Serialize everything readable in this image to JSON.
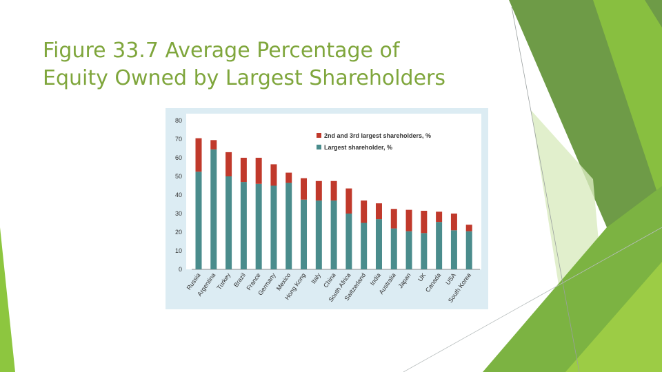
{
  "slide": {
    "title_line1": "Figure 33.7 Average Percentage of",
    "title_line2": "Equity Owned by Largest Shareholders"
  },
  "colors": {
    "title": "#7fa63c",
    "largest": "#4a8c8c",
    "second_third": "#c0392b",
    "panel": "#dcecf3",
    "plot_bg": "#ffffff"
  },
  "chart_data": {
    "type": "bar",
    "stacked": true,
    "title": "",
    "xlabel": "",
    "ylabel": "",
    "ylim": [
      0,
      80
    ],
    "yticks": [
      0,
      10,
      20,
      30,
      40,
      50,
      60,
      70,
      80
    ],
    "legend_position": "top-right",
    "categories": [
      "Russia",
      "Argentina",
      "Turkey",
      "Brazil",
      "France",
      "Germany",
      "Mexico",
      "Hong Kong",
      "Italy",
      "China",
      "South Africa",
      "Switzerland",
      "India",
      "Australia",
      "Japan",
      "UK",
      "Canada",
      "USA",
      "South Korea"
    ],
    "series": [
      {
        "name": "Largest shareholder, %",
        "values": [
          52.5,
          64.5,
          50,
          47,
          46,
          45,
          46.5,
          37.5,
          37,
          37,
          30,
          25,
          27,
          22,
          20.5,
          19.5,
          25.5,
          21,
          20.5
        ]
      },
      {
        "name": "2nd and 3rd largest shareholders, %",
        "values": [
          18,
          5,
          13,
          13,
          14,
          11.5,
          5.5,
          11.5,
          10.5,
          10.5,
          13.5,
          12,
          8.5,
          10.5,
          11.5,
          12,
          5.5,
          9,
          3.5
        ]
      }
    ]
  }
}
